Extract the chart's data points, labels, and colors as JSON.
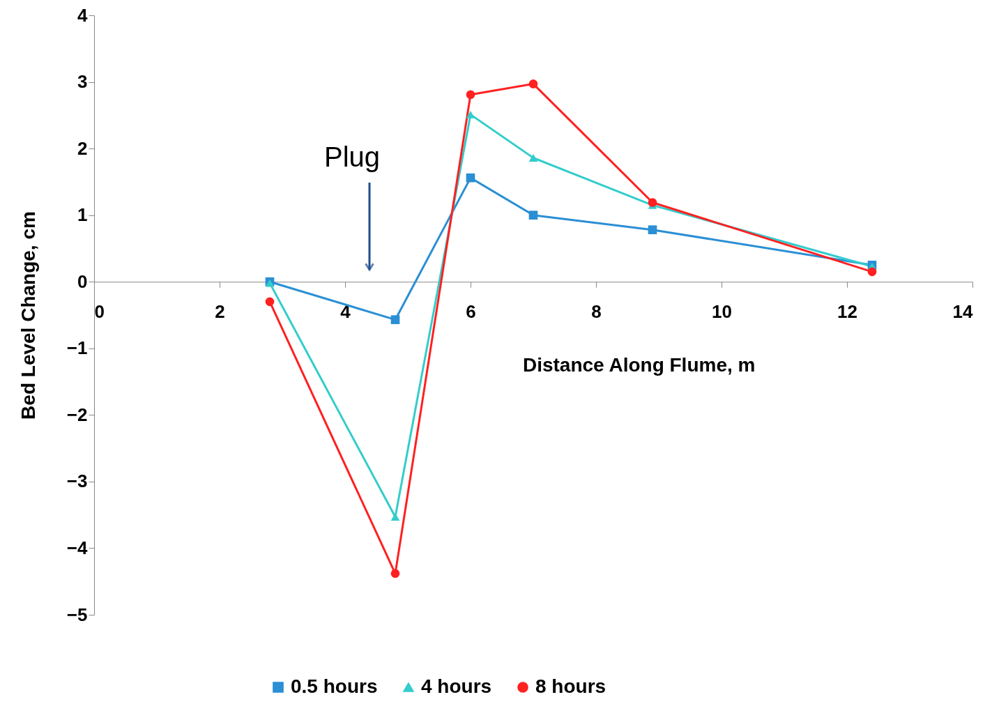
{
  "chart_data": {
    "type": "line",
    "xlabel": "Distance Along Flume, m",
    "ylabel": "Bed Level Change, cm",
    "x": [
      2.8,
      4.8,
      6.0,
      7.0,
      8.9,
      12.4
    ],
    "series": [
      {
        "name": "0.5 hours",
        "color": "#2a8fd4",
        "marker": "square",
        "values": [
          0.0,
          -0.57,
          1.56,
          1.0,
          0.78,
          0.25
        ]
      },
      {
        "name": "4 hours",
        "color": "#33cccc",
        "marker": "triangle",
        "values": [
          -0.02,
          -3.53,
          2.51,
          1.86,
          1.15,
          0.23
        ]
      },
      {
        "name": "8 hours",
        "color": "#ff2020",
        "marker": "circle",
        "values": [
          -0.3,
          -4.38,
          2.81,
          2.97,
          1.19,
          0.15
        ]
      }
    ],
    "xlim": [
      0,
      14
    ],
    "xticks": [
      0,
      2,
      4,
      6,
      8,
      10,
      12,
      14
    ],
    "ylim": [
      -5,
      4
    ],
    "yticks": [
      -5,
      -4,
      -3,
      -2,
      -1,
      0,
      1,
      2,
      3,
      4
    ],
    "grid": false,
    "legend": "bottom",
    "line_style": "solid",
    "annotations": [
      "Plug"
    ]
  }
}
